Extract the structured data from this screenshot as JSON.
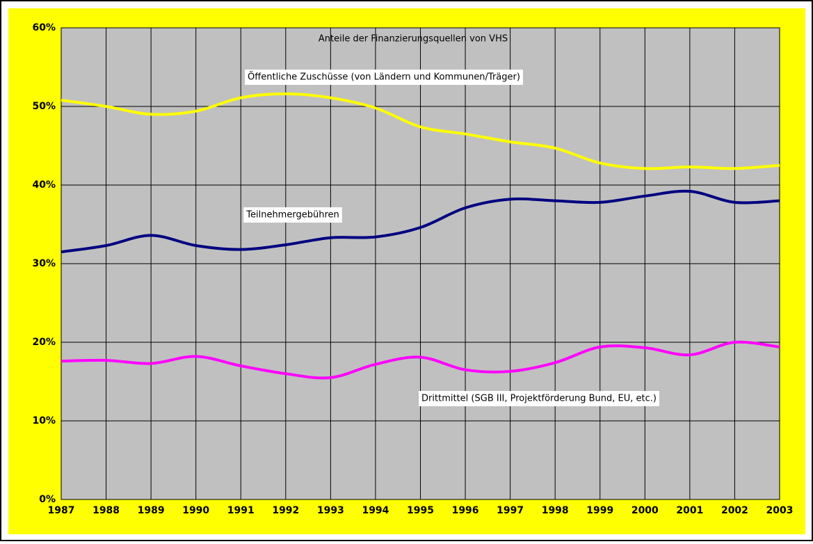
{
  "chart_data": {
    "type": "line",
    "title": "Anteile der Finanzierungsquellen von VHS",
    "x": [
      1987,
      1988,
      1989,
      1990,
      1991,
      1992,
      1993,
      1994,
      1995,
      1996,
      1997,
      1998,
      1999,
      2000,
      2001,
      2002,
      2003
    ],
    "xlim": [
      1987,
      2003
    ],
    "xticks": [
      1987,
      1988,
      1989,
      1990,
      1991,
      1992,
      1993,
      1994,
      1995,
      1996,
      1997,
      1998,
      1999,
      2000,
      2001,
      2002,
      2003
    ],
    "ylim": [
      0,
      60
    ],
    "yticks": [
      {
        "value": 0,
        "label": "0%"
      },
      {
        "value": 10,
        "label": "10%"
      },
      {
        "value": 20,
        "label": "20%"
      },
      {
        "value": 30,
        "label": "30%"
      },
      {
        "value": 40,
        "label": "40%"
      },
      {
        "value": 50,
        "label": "50%"
      },
      {
        "value": 60,
        "label": "60%"
      }
    ],
    "grid": true,
    "series": [
      {
        "name": "Öffentliche Zuschüsse (von Ländern und Kommunen/Träger)",
        "color": "#ffff00",
        "values": [
          50.8,
          50.0,
          49.0,
          49.4,
          51.1,
          51.6,
          51.1,
          49.8,
          47.4,
          46.5,
          45.5,
          44.7,
          42.8,
          42.1,
          42.3,
          42.1,
          42.5
        ]
      },
      {
        "name": "Teilnehmergebühren",
        "color": "#000080",
        "values": [
          31.5,
          32.3,
          33.6,
          32.3,
          31.8,
          32.4,
          33.3,
          33.4,
          34.6,
          37.1,
          38.2,
          38.0,
          37.8,
          38.6,
          39.2,
          37.8,
          38.0
        ]
      },
      {
        "name": "Drittmittel (SGB III, Projektförderung Bund, EU, etc.)",
        "color": "#ff00ff",
        "values": [
          17.6,
          17.7,
          17.3,
          18.2,
          17.0,
          16.0,
          15.5,
          17.2,
          18.1,
          16.5,
          16.3,
          17.4,
          19.4,
          19.3,
          18.4,
          20.0,
          19.4
        ]
      }
    ]
  }
}
